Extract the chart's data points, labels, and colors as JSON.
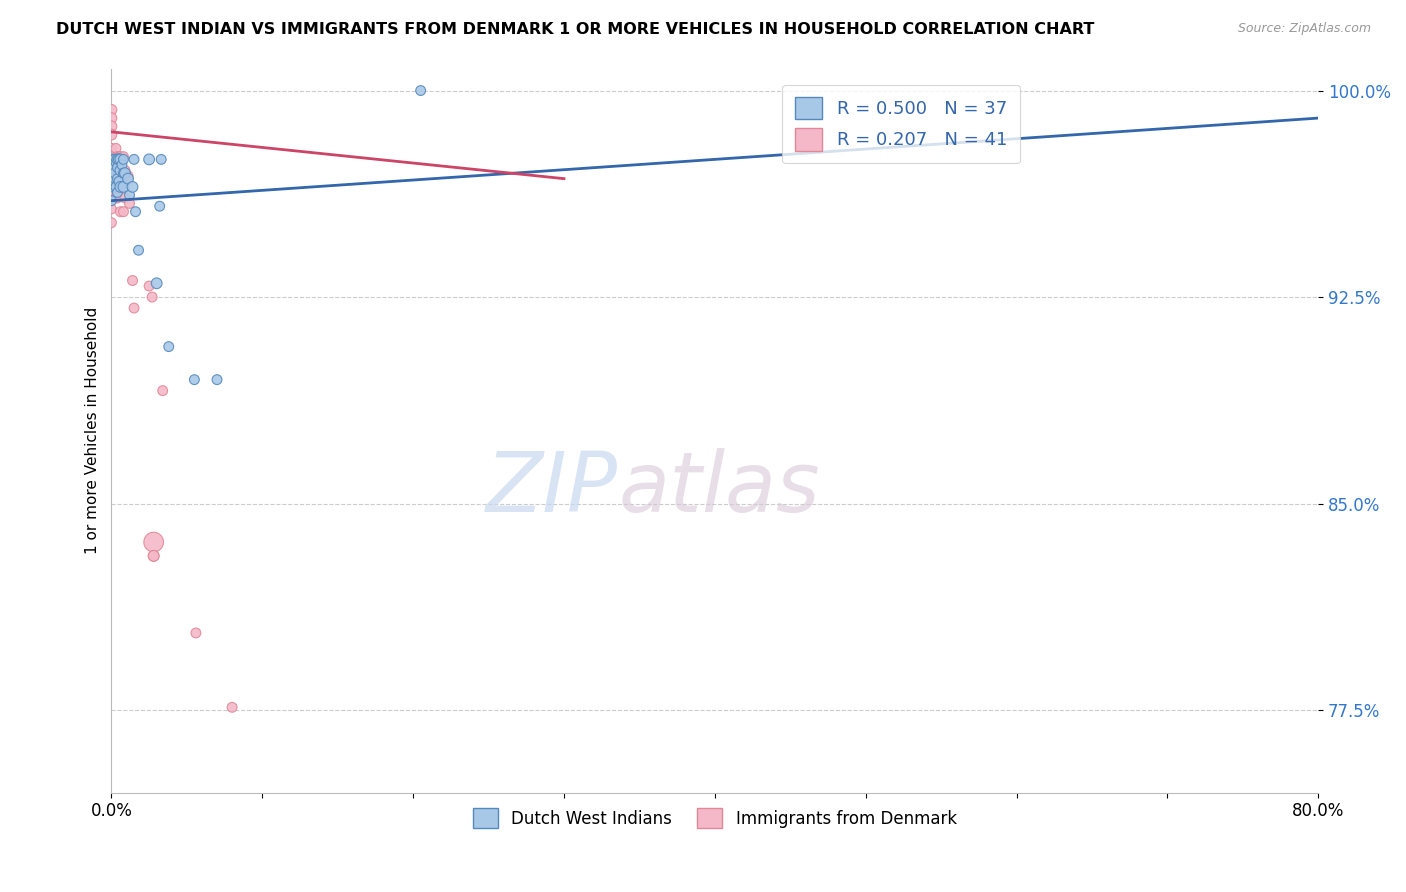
{
  "title": "DUTCH WEST INDIAN VS IMMIGRANTS FROM DENMARK 1 OR MORE VEHICLES IN HOUSEHOLD CORRELATION CHART",
  "source": "Source: ZipAtlas.com",
  "ylabel": "1 or more Vehicles in Household",
  "xlabel": "",
  "xmin": 0.0,
  "xmax": 0.8,
  "ymin": 0.745,
  "ymax": 1.008,
  "yticks": [
    1.0,
    0.925,
    0.85,
    0.775
  ],
  "ytick_labels": [
    "100.0%",
    "92.5%",
    "85.0%",
    "77.5%"
  ],
  "xticks": [
    0.0,
    0.1,
    0.2,
    0.3,
    0.4,
    0.5,
    0.6,
    0.7,
    0.8
  ],
  "xtick_labels": [
    "0.0%",
    "",
    "",
    "",
    "",
    "",
    "",
    "",
    "80.0%"
  ],
  "blue_color": "#a8c8e8",
  "pink_color": "#f4b8c8",
  "blue_edge_color": "#5588bb",
  "pink_edge_color": "#e08898",
  "blue_line_color": "#3366aa",
  "pink_line_color": "#cc4466",
  "legend_blue_R": 0.5,
  "legend_blue_N": 37,
  "legend_pink_R": 0.207,
  "legend_pink_N": 41,
  "watermark_zip": "ZIP",
  "watermark_atlas": "atlas",
  "legend1": "Dutch West Indians",
  "legend2": "Immigrants from Denmark",
  "blue_line_x0": 0.0,
  "blue_line_y0": 0.96,
  "blue_line_x1": 0.8,
  "blue_line_y1": 0.99,
  "pink_line_x0": 0.0,
  "pink_line_y0": 0.985,
  "pink_line_x1": 0.3,
  "pink_line_y1": 0.968,
  "blue_x": [
    0.0,
    0.0,
    0.0,
    0.0,
    0.0,
    0.002,
    0.002,
    0.003,
    0.003,
    0.004,
    0.004,
    0.004,
    0.004,
    0.005,
    0.005,
    0.006,
    0.006,
    0.006,
    0.007,
    0.008,
    0.008,
    0.008,
    0.009,
    0.011,
    0.012,
    0.014,
    0.015,
    0.016,
    0.018,
    0.025,
    0.03,
    0.032,
    0.033,
    0.038,
    0.055,
    0.07,
    0.205
  ],
  "blue_y": [
    0.975,
    0.972,
    0.968,
    0.965,
    0.96,
    0.975,
    0.97,
    0.974,
    0.965,
    0.975,
    0.972,
    0.968,
    0.963,
    0.975,
    0.967,
    0.975,
    0.971,
    0.965,
    0.973,
    0.975,
    0.97,
    0.965,
    0.97,
    0.968,
    0.962,
    0.965,
    0.975,
    0.956,
    0.942,
    0.975,
    0.93,
    0.958,
    0.975,
    0.907,
    0.895,
    0.895,
    1.0
  ],
  "blue_sizes": [
    60,
    60,
    50,
    50,
    50,
    50,
    50,
    50,
    50,
    60,
    50,
    50,
    50,
    60,
    50,
    60,
    60,
    60,
    50,
    50,
    50,
    60,
    60,
    60,
    50,
    60,
    50,
    50,
    50,
    60,
    60,
    50,
    50,
    50,
    50,
    50,
    50
  ],
  "pink_x": [
    0.0,
    0.0,
    0.0,
    0.0,
    0.0,
    0.0,
    0.0,
    0.0,
    0.0,
    0.0,
    0.0,
    0.002,
    0.002,
    0.003,
    0.003,
    0.004,
    0.004,
    0.004,
    0.005,
    0.005,
    0.006,
    0.006,
    0.006,
    0.007,
    0.008,
    0.008,
    0.008,
    0.009,
    0.009,
    0.011,
    0.012,
    0.014,
    0.015,
    0.025,
    0.027,
    0.028,
    0.028,
    0.028,
    0.034,
    0.056,
    0.08
  ],
  "pink_y": [
    0.993,
    0.99,
    0.987,
    0.984,
    0.979,
    0.976,
    0.972,
    0.967,
    0.962,
    0.957,
    0.952,
    0.976,
    0.969,
    0.979,
    0.961,
    0.976,
    0.969,
    0.961,
    0.976,
    0.966,
    0.976,
    0.969,
    0.956,
    0.971,
    0.976,
    0.966,
    0.956,
    0.971,
    0.961,
    0.969,
    0.959,
    0.931,
    0.921,
    0.929,
    0.925,
    0.836,
    0.831,
    0.831,
    0.891,
    0.803,
    0.776
  ],
  "pink_sizes": [
    60,
    60,
    60,
    60,
    50,
    50,
    60,
    50,
    50,
    50,
    50,
    60,
    50,
    50,
    50,
    50,
    50,
    50,
    50,
    50,
    50,
    50,
    50,
    50,
    50,
    50,
    50,
    50,
    50,
    50,
    50,
    50,
    50,
    50,
    50,
    200,
    60,
    60,
    50,
    50,
    50
  ]
}
